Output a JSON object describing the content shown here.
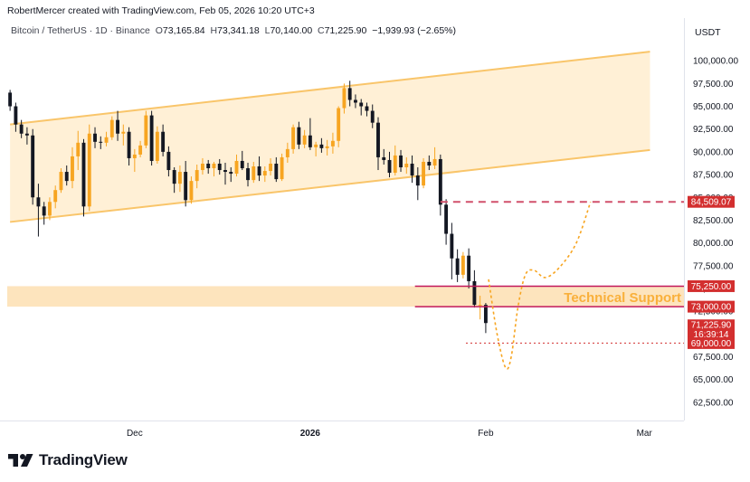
{
  "credit": "RobertMercer created with TradingView.com, Feb 05, 2026 10:20 UTC+3",
  "legend": {
    "symbol": "Bitcoin / TetherUS · 1D · Binance",
    "open_label": "O",
    "open": "73,165.84",
    "high_label": "H",
    "high": "73,341.18",
    "low_label": "L",
    "low": "70,140.00",
    "close_label": "C",
    "close": "71,225.90",
    "change": "−1,939.93 (−2.65%)"
  },
  "brand": {
    "name": "TradingView",
    "logo_icon": "tradingview-logo-icon"
  },
  "colors": {
    "up": "#f7a521",
    "down": "#131722",
    "channel_fill": "#fff0d6",
    "channel_line": "#f9c56a",
    "support_fill": "#fde4bd",
    "support_line": "#c2185b",
    "resistance_dash": "#d1506b",
    "projection": "#f7a521",
    "label_red": "#d32f2f",
    "axis_text": "#131722",
    "annotation_text": "#f9b03b"
  },
  "chart_data": {
    "type": "candlestick",
    "currency": "USDT",
    "ylim": [
      60500,
      102500
    ],
    "y_ticks": [
      62500,
      65000,
      67500,
      70000,
      72500,
      75000,
      77500,
      80000,
      82500,
      85000,
      87500,
      90000,
      92500,
      95000,
      97500,
      100000
    ],
    "y_tick_labels": [
      "62,500.00",
      "65,000.00",
      "67,500.00",
      "70,000.00",
      "72,500.00",
      "75,000.00",
      "77,500.00",
      "80,000.00",
      "82,500.00",
      "85,000.00",
      "87,500.00",
      "90,000.00",
      "92,500.00",
      "95,000.00",
      "97,500.00",
      "100,000.00"
    ],
    "x_ticks": [
      {
        "label": "Dec",
        "day": 22
      },
      {
        "label": "2026",
        "day": 53
      },
      {
        "label": "Feb",
        "day": 84
      },
      {
        "label": "Mar",
        "day": 112
      }
    ],
    "x_range_days": [
      -0.5,
      119
    ],
    "candles": [
      [
        96500,
        96800,
        94500,
        95000
      ],
      [
        95000,
        95400,
        92200,
        93000
      ],
      [
        93000,
        93500,
        91500,
        92000
      ],
      [
        92000,
        92700,
        90800,
        91800
      ],
      [
        91800,
        92500,
        84200,
        85000
      ],
      [
        85000,
        86500,
        80700,
        84000
      ],
      [
        84000,
        84500,
        82000,
        83000
      ],
      [
        83000,
        85000,
        82500,
        84500
      ],
      [
        84500,
        86300,
        83800,
        85800
      ],
      [
        85800,
        88200,
        85500,
        87800
      ],
      [
        87800,
        88500,
        86300,
        86800
      ],
      [
        86800,
        90500,
        86000,
        89500
      ],
      [
        89500,
        92300,
        88000,
        91000
      ],
      [
        91000,
        91400,
        82900,
        84000
      ],
      [
        84000,
        93000,
        83500,
        92000
      ],
      [
        92000,
        92700,
        90400,
        91100
      ],
      [
        91100,
        91700,
        90300,
        91000
      ],
      [
        91000,
        92200,
        90600,
        91600
      ],
      [
        91600,
        93900,
        91300,
        93500
      ],
      [
        93500,
        94500,
        91200,
        92000
      ],
      [
        92000,
        93000,
        90700,
        92200
      ],
      [
        92200,
        92700,
        88500,
        89300
      ],
      [
        89300,
        90300,
        87800,
        89700
      ],
      [
        89700,
        91200,
        89400,
        90700
      ],
      [
        90700,
        94500,
        90400,
        94000
      ],
      [
        94000,
        94500,
        88500,
        89000
      ],
      [
        89000,
        92800,
        88700,
        92200
      ],
      [
        92200,
        93000,
        89500,
        90000
      ],
      [
        90000,
        90600,
        87300,
        88000
      ],
      [
        88000,
        88300,
        85500,
        86500
      ],
      [
        86500,
        88500,
        85600,
        87800
      ],
      [
        87800,
        89000,
        84000,
        84700
      ],
      [
        84700,
        87300,
        84300,
        86800
      ],
      [
        86800,
        88600,
        86000,
        88000
      ],
      [
        88000,
        89300,
        87500,
        88700
      ],
      [
        88700,
        89100,
        87600,
        88200
      ],
      [
        88200,
        88900,
        87300,
        88700
      ],
      [
        88700,
        89200,
        87500,
        88000
      ],
      [
        88000,
        88800,
        86400,
        87800
      ],
      [
        87800,
        88300,
        86700,
        87600
      ],
      [
        87600,
        89700,
        87300,
        89000
      ],
      [
        89000,
        90100,
        88000,
        88200
      ],
      [
        88200,
        88800,
        86200,
        86900
      ],
      [
        86900,
        88900,
        86600,
        88400
      ],
      [
        88400,
        89500,
        86800,
        87400
      ],
      [
        87400,
        88400,
        86700,
        87900
      ],
      [
        87900,
        89300,
        87400,
        88700
      ],
      [
        88700,
        89400,
        86700,
        87000
      ],
      [
        87000,
        89800,
        86800,
        89400
      ],
      [
        89400,
        91000,
        88800,
        90300
      ],
      [
        90300,
        93000,
        89800,
        92700
      ],
      [
        92700,
        93300,
        90300,
        90800
      ],
      [
        90800,
        92400,
        90400,
        91800
      ],
      [
        91800,
        93700,
        90200,
        90500
      ],
      [
        90500,
        91100,
        89500,
        90800
      ],
      [
        90800,
        91500,
        89900,
        90400
      ],
      [
        90400,
        91300,
        89600,
        90600
      ],
      [
        90600,
        92100,
        89800,
        91200
      ],
      [
        91200,
        95000,
        90500,
        94800
      ],
      [
        94800,
        97500,
        94200,
        97000
      ],
      [
        97000,
        97800,
        95000,
        95700
      ],
      [
        95700,
        96300,
        94800,
        95400
      ],
      [
        95400,
        95800,
        94000,
        95000
      ],
      [
        95000,
        95400,
        93900,
        94500
      ],
      [
        94500,
        95200,
        92600,
        93200
      ],
      [
        93200,
        93800,
        88000,
        89400
      ],
      [
        89400,
        90300,
        88600,
        89100
      ],
      [
        89100,
        90000,
        87200,
        87700
      ],
      [
        87700,
        90700,
        87400,
        89600
      ],
      [
        89600,
        90200,
        87800,
        88300
      ],
      [
        88300,
        89400,
        87600,
        88700
      ],
      [
        88700,
        89600,
        86600,
        87400
      ],
      [
        87400,
        88300,
        84700,
        86300
      ],
      [
        86300,
        89300,
        86000,
        88900
      ],
      [
        88900,
        89600,
        88000,
        88500
      ],
      [
        88500,
        90500,
        88100,
        89200
      ],
      [
        89200,
        89700,
        83000,
        84200
      ],
      [
        84200,
        84800,
        79800,
        81000
      ],
      [
        81000,
        82200,
        76000,
        78300
      ],
      [
        78300,
        79300,
        75700,
        76500
      ],
      [
        76500,
        79000,
        76100,
        78600
      ],
      [
        78600,
        79400,
        75000,
        75800
      ],
      [
        75800,
        77000,
        72900,
        73200
      ],
      [
        73200,
        74200,
        71600,
        73200
      ],
      [
        73200,
        73400,
        70100,
        71200
      ]
    ],
    "channel": {
      "upper": [
        [
          0,
          93000
        ],
        [
          113,
          101000
        ]
      ],
      "lower": [
        [
          0,
          82300
        ],
        [
          113,
          90200
        ]
      ]
    },
    "support_zone": {
      "top": 75250,
      "bottom": 73000
    },
    "support_lines": [
      75250,
      73000
    ],
    "resistance_level": 84509.07,
    "target_level": 69000,
    "annotation": "Technical Support",
    "projection": [
      [
        84.5,
        76000
      ],
      [
        86,
        70000
      ],
      [
        87.5,
        66300
      ],
      [
        88.5,
        67500
      ],
      [
        89.7,
        73000
      ],
      [
        91,
        76500
      ],
      [
        92.5,
        77000
      ],
      [
        94.5,
        76200
      ],
      [
        97,
        77300
      ],
      [
        100,
        80000
      ],
      [
        102.5,
        84500
      ]
    ],
    "price_labels": {
      "resistance": "84,509.07",
      "support_top": "75,250.00",
      "support_bottom": "73,000.00",
      "last": "71,225.90",
      "countdown": "16:39:14",
      "target": "69,000.00"
    }
  }
}
